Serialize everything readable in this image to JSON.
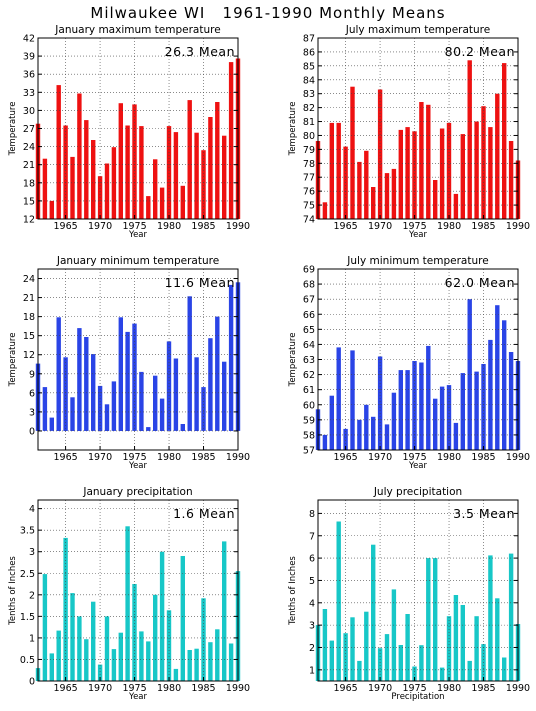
{
  "page_title": "Milwaukee WI   1961-1990 Monthly Means",
  "chart_data": [
    {
      "type": "bar",
      "title": "January maximum temperature",
      "mean_label": "26.3 Mean",
      "color": "#ee1111",
      "xlabel": "Year",
      "ylabel": "Temperature",
      "ylim": [
        12,
        42
      ],
      "yticks": [
        "12",
        "15",
        "18",
        "21",
        "24",
        "27",
        "30",
        "33",
        "36",
        "39",
        "42"
      ],
      "xlim": [
        1961,
        1990
      ],
      "xticks": [
        "1965",
        "1970",
        "1975",
        "1980",
        "1985",
        "1990"
      ],
      "x": [
        1961,
        1962,
        1963,
        1964,
        1965,
        1966,
        1967,
        1968,
        1969,
        1970,
        1971,
        1972,
        1973,
        1974,
        1975,
        1976,
        1977,
        1978,
        1979,
        1980,
        1981,
        1982,
        1983,
        1984,
        1985,
        1986,
        1987,
        1988,
        1989,
        1990
      ],
      "values": [
        27.8,
        22.0,
        15.0,
        34.2,
        27.5,
        22.3,
        32.8,
        28.4,
        25.1,
        19.1,
        21.2,
        23.9,
        31.2,
        27.5,
        31.0,
        27.4,
        15.8,
        21.9,
        17.2,
        27.4,
        26.4,
        17.5,
        31.7,
        26.3,
        23.4,
        28.9,
        31.4,
        25.8,
        38.0,
        38.6
      ],
      "grid": true
    },
    {
      "type": "bar",
      "title": "July maximum temperature",
      "mean_label": "80.2 Mean",
      "color": "#ee1111",
      "xlabel": "Year",
      "ylabel": "Temperature",
      "ylim": [
        74,
        87
      ],
      "yticks": [
        "74",
        "75",
        "76",
        "77",
        "78",
        "79",
        "80",
        "81",
        "82",
        "83",
        "84",
        "85",
        "86",
        "87"
      ],
      "xlim": [
        1961,
        1990
      ],
      "xticks": [
        "1965",
        "1970",
        "1975",
        "1980",
        "1985",
        "1990"
      ],
      "x": [
        1961,
        1962,
        1963,
        1964,
        1965,
        1966,
        1967,
        1968,
        1969,
        1970,
        1971,
        1972,
        1973,
        1974,
        1975,
        1976,
        1977,
        1978,
        1979,
        1980,
        1981,
        1982,
        1983,
        1984,
        1985,
        1986,
        1987,
        1988,
        1989,
        1990
      ],
      "values": [
        79.6,
        75.2,
        80.9,
        80.9,
        79.2,
        83.5,
        78.1,
        78.9,
        76.3,
        83.3,
        77.3,
        77.6,
        80.4,
        80.6,
        80.3,
        82.4,
        82.2,
        76.8,
        80.5,
        80.9,
        75.8,
        80.1,
        85.4,
        81.0,
        82.1,
        80.6,
        83.0,
        85.2,
        79.6,
        78.2
      ],
      "grid": true
    },
    {
      "type": "bar",
      "title": "January minimum temperature",
      "mean_label": "11.6 Mean",
      "color": "#2a44e6",
      "xlabel": "Year",
      "ylabel": "Temperature",
      "ylim": [
        -3,
        25.5
      ],
      "yticks": [
        "0",
        "3",
        "6",
        "9",
        "12",
        "15",
        "18",
        "21",
        "24"
      ],
      "xlim": [
        1961,
        1990
      ],
      "xticks": [
        "1965",
        "1970",
        "1975",
        "1980",
        "1985",
        "1990"
      ],
      "x": [
        1961,
        1962,
        1963,
        1964,
        1965,
        1966,
        1967,
        1968,
        1969,
        1970,
        1971,
        1972,
        1973,
        1974,
        1975,
        1976,
        1977,
        1978,
        1979,
        1980,
        1981,
        1982,
        1983,
        1984,
        1985,
        1986,
        1987,
        1988,
        1989,
        1990
      ],
      "values": [
        10.6,
        6.9,
        2.1,
        17.9,
        11.6,
        5.3,
        16.2,
        14.8,
        12.1,
        7.1,
        4.2,
        7.8,
        17.9,
        15.6,
        16.9,
        9.3,
        0.6,
        8.7,
        5.1,
        14.1,
        11.4,
        1.1,
        21.2,
        11.6,
        6.9,
        14.6,
        18.0,
        10.9,
        23.0,
        23.4
      ],
      "grid": true
    },
    {
      "type": "bar",
      "title": "July minimum temperature",
      "mean_label": "62.0 Mean",
      "color": "#2a44e6",
      "xlabel": "Year",
      "ylabel": "Temperature",
      "ylim": [
        57,
        69
      ],
      "yticks": [
        "57",
        "58",
        "59",
        "60",
        "61",
        "62",
        "63",
        "64",
        "65",
        "66",
        "67",
        "68",
        "69"
      ],
      "xlim": [
        1961,
        1990
      ],
      "xticks": [
        "1965",
        "1970",
        "1975",
        "1980",
        "1985",
        "1990"
      ],
      "x": [
        1961,
        1962,
        1963,
        1964,
        1965,
        1966,
        1967,
        1968,
        1969,
        1970,
        1971,
        1972,
        1973,
        1974,
        1975,
        1976,
        1977,
        1978,
        1979,
        1980,
        1981,
        1982,
        1983,
        1984,
        1985,
        1986,
        1987,
        1988,
        1989,
        1990
      ],
      "values": [
        59.7,
        58.0,
        60.6,
        63.8,
        58.4,
        63.6,
        59.0,
        60.0,
        59.2,
        63.2,
        58.7,
        60.8,
        62.3,
        62.3,
        62.9,
        62.8,
        63.9,
        60.4,
        61.2,
        61.3,
        58.8,
        62.1,
        67.0,
        62.2,
        62.7,
        64.3,
        66.6,
        65.6,
        63.5,
        62.9
      ],
      "grid": true
    },
    {
      "type": "bar",
      "title": "January precipitation",
      "mean_label": "1.6 Mean",
      "color": "#17c7c7",
      "xlabel": "Year",
      "ylabel": "Tenths of Inches",
      "ylim": [
        0,
        4.2
      ],
      "yticks": [
        "0",
        "0.5",
        "1",
        "1.5",
        "2",
        "2.5",
        "3",
        "3.5",
        "4"
      ],
      "xlim": [
        1961,
        1990
      ],
      "xticks": [
        "1965",
        "1970",
        "1975",
        "1980",
        "1985",
        "1990"
      ],
      "x": [
        1961,
        1962,
        1963,
        1964,
        1965,
        1966,
        1967,
        1968,
        1969,
        1970,
        1971,
        1972,
        1973,
        1974,
        1975,
        1976,
        1977,
        1978,
        1979,
        1980,
        1981,
        1982,
        1983,
        1984,
        1985,
        1986,
        1987,
        1988,
        1989,
        1990
      ],
      "values": [
        0.3,
        2.48,
        0.64,
        1.17,
        3.32,
        2.04,
        1.5,
        0.97,
        1.84,
        0.38,
        1.5,
        0.74,
        1.12,
        3.59,
        2.25,
        1.15,
        0.92,
        2.0,
        3.0,
        1.64,
        0.28,
        2.9,
        0.72,
        0.75,
        1.92,
        0.9,
        1.2,
        3.24,
        0.87,
        2.55
      ],
      "grid": true
    },
    {
      "type": "bar",
      "title": "July precipitation",
      "mean_label": "3.5 Mean",
      "color": "#17c7c7",
      "xlabel": "Precipitation",
      "ylabel": "Tenths of Inches",
      "ylim": [
        0.5,
        8.6
      ],
      "yticks": [
        "1",
        "2",
        "3",
        "4",
        "5",
        "6",
        "7",
        "8"
      ],
      "xlim": [
        1961,
        1990
      ],
      "xticks": [
        "1965",
        "1970",
        "1975",
        "1980",
        "1985",
        "1990"
      ],
      "x": [
        1961,
        1962,
        1963,
        1964,
        1965,
        1966,
        1967,
        1968,
        1969,
        1970,
        1971,
        1972,
        1973,
        1974,
        1975,
        1976,
        1977,
        1978,
        1979,
        1980,
        1981,
        1982,
        1983,
        1984,
        1985,
        1986,
        1987,
        1988,
        1989,
        1990
      ],
      "values": [
        3.0,
        3.72,
        2.31,
        7.64,
        2.64,
        3.35,
        1.4,
        3.6,
        6.6,
        1.97,
        2.6,
        4.6,
        2.11,
        3.5,
        1.15,
        2.1,
        6.0,
        6.0,
        1.1,
        3.4,
        4.35,
        3.9,
        1.4,
        3.4,
        2.15,
        6.12,
        4.2,
        1.55,
        6.2,
        3.05
      ],
      "grid": true
    }
  ]
}
